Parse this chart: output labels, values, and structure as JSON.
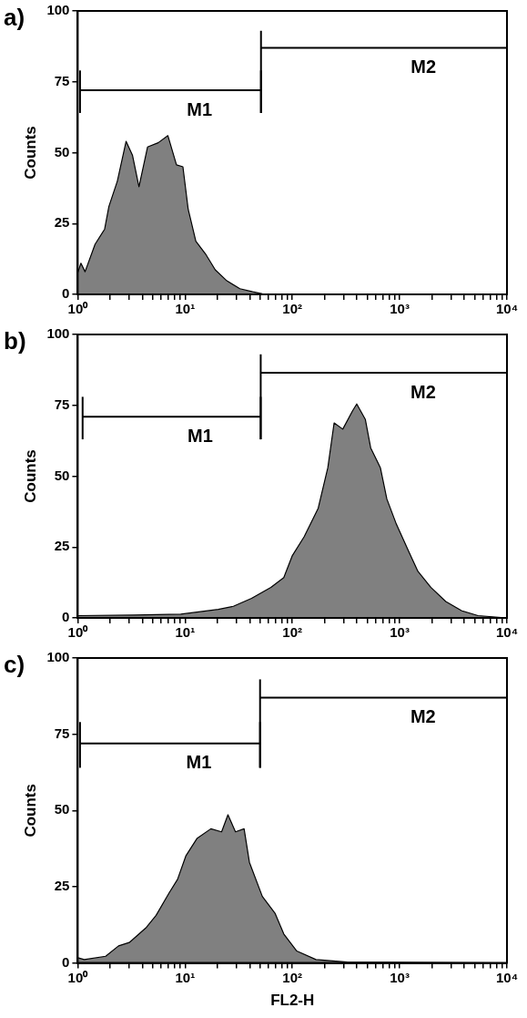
{
  "chart_data": [
    {
      "type": "area",
      "title": "a)",
      "ylabel": "Counts",
      "log": "x",
      "xlim": [
        1,
        10000
      ],
      "ylim": [
        0,
        100
      ],
      "marker": "none",
      "grid": false,
      "legend": false,
      "xticks": [
        {
          "value": 1,
          "label": "10⁰"
        },
        {
          "value": 2,
          "label": null
        },
        {
          "value": 3,
          "label": null
        },
        {
          "value": 4,
          "label": null
        },
        {
          "value": 5,
          "label": null
        },
        {
          "value": 6,
          "label": null
        },
        {
          "value": 7,
          "label": null
        },
        {
          "value": 8,
          "label": null
        },
        {
          "value": 9,
          "label": null
        },
        {
          "value": 10,
          "label": "10¹"
        },
        {
          "value": 20,
          "label": null
        },
        {
          "value": 30,
          "label": null
        },
        {
          "value": 40,
          "label": null
        },
        {
          "value": 50,
          "label": null
        },
        {
          "value": 60,
          "label": null
        },
        {
          "value": 70,
          "label": null
        },
        {
          "value": 80,
          "label": null
        },
        {
          "value": 90,
          "label": null
        },
        {
          "value": 100,
          "label": "10²"
        },
        {
          "value": 200,
          "label": null
        },
        {
          "value": 300,
          "label": null
        },
        {
          "value": 400,
          "label": null
        },
        {
          "value": 500,
          "label": null
        },
        {
          "value": 600,
          "label": null
        },
        {
          "value": 700,
          "label": null
        },
        {
          "value": 800,
          "label": null
        },
        {
          "value": 900,
          "label": null
        },
        {
          "value": 1000,
          "label": "10³"
        },
        {
          "value": 2000,
          "label": null
        },
        {
          "value": 3000,
          "label": null
        },
        {
          "value": 4000,
          "label": null
        },
        {
          "value": 5000,
          "label": null
        },
        {
          "value": 6000,
          "label": null
        },
        {
          "value": 7000,
          "label": null
        },
        {
          "value": 8000,
          "label": null
        },
        {
          "value": 9000,
          "label": null
        },
        {
          "value": 10000,
          "label": "10⁴"
        }
      ],
      "yticks": [
        0,
        25,
        50,
        75,
        100
      ],
      "series": [
        {
          "color": "#808080",
          "x": [
            1,
            1.07,
            1.17,
            1.45,
            1.78,
            1.95,
            2.34,
            2.82,
            3.24,
            3.72,
            4.47,
            5.62,
            6.92,
            8.32,
            9.55,
            10.7,
            12.6,
            15.5,
            19.1,
            24.5,
            32.4,
            42.7,
            52.5,
            77.6,
            10000
          ],
          "values": [
            7.6,
            11,
            8,
            17.7,
            23,
            31,
            40,
            54,
            49,
            38,
            52,
            53.5,
            56,
            45.7,
            45,
            30,
            18.8,
            14.3,
            8.7,
            4.8,
            2,
            0.9,
            0.2,
            0,
            0
          ]
        },
        {
          "type": "line",
          "name": "M1",
          "color": "#000000",
          "x": [
            1.05,
            51
          ],
          "values": [
            72,
            72
          ],
          "errors": [
            [
              64,
              79
            ],
            [
              64,
              79
            ]
          ]
        },
        {
          "type": "line",
          "name": "M2",
          "color": "#000000",
          "x": [
            51,
            10000
          ],
          "values": [
            87,
            87
          ],
          "errors": [
            [
              64,
              93
            ],
            [
              78,
              93
            ]
          ]
        }
      ]
    },
    {
      "type": "area",
      "title": "b)",
      "ylabel": "Counts",
      "log": "x",
      "xlim": [
        1,
        10000
      ],
      "ylim": [
        0,
        100
      ],
      "marker": "none",
      "grid": false,
      "legend": false,
      "xticks": [
        {
          "value": 1,
          "label": "10⁰"
        },
        {
          "value": 2,
          "label": null
        },
        {
          "value": 3,
          "label": null
        },
        {
          "value": 4,
          "label": null
        },
        {
          "value": 5,
          "label": null
        },
        {
          "value": 6,
          "label": null
        },
        {
          "value": 7,
          "label": null
        },
        {
          "value": 8,
          "label": null
        },
        {
          "value": 9,
          "label": null
        },
        {
          "value": 10,
          "label": "10¹"
        },
        {
          "value": 20,
          "label": null
        },
        {
          "value": 30,
          "label": null
        },
        {
          "value": 40,
          "label": null
        },
        {
          "value": 50,
          "label": null
        },
        {
          "value": 60,
          "label": null
        },
        {
          "value": 70,
          "label": null
        },
        {
          "value": 80,
          "label": null
        },
        {
          "value": 90,
          "label": null
        },
        {
          "value": 100,
          "label": "10²"
        },
        {
          "value": 200,
          "label": null
        },
        {
          "value": 300,
          "label": null
        },
        {
          "value": 400,
          "label": null
        },
        {
          "value": 500,
          "label": null
        },
        {
          "value": 600,
          "label": null
        },
        {
          "value": 700,
          "label": null
        },
        {
          "value": 800,
          "label": null
        },
        {
          "value": 900,
          "label": null
        },
        {
          "value": 1000,
          "label": "10³"
        },
        {
          "value": 2000,
          "label": null
        },
        {
          "value": 3000,
          "label": null
        },
        {
          "value": 4000,
          "label": null
        },
        {
          "value": 5000,
          "label": null
        },
        {
          "value": 6000,
          "label": null
        },
        {
          "value": 7000,
          "label": null
        },
        {
          "value": 8000,
          "label": null
        },
        {
          "value": 9000,
          "label": null
        },
        {
          "value": 10000,
          "label": "10⁴"
        }
      ],
      "yticks": [
        0,
        25,
        50,
        75,
        100
      ],
      "series": [
        {
          "color": "#808080",
          "x": [
            1,
            3.31,
            9.12,
            20.4,
            28.2,
            41.7,
            63.1,
            83.2,
            100,
            129,
            174,
            214,
            245,
            295,
            363,
            398,
            479,
            537,
            661,
            759,
            933,
            1230,
            1480,
            1950,
            2690,
            3800,
            5370,
            10000
          ],
          "values": [
            0.8,
            1,
            1.3,
            3,
            4.1,
            6.9,
            10.8,
            14.2,
            22,
            28.7,
            38.7,
            53,
            68.8,
            66.6,
            73,
            75.5,
            70,
            60,
            53,
            42,
            33,
            23,
            16.4,
            10.8,
            5.8,
            2.5,
            0.8,
            0
          ]
        },
        {
          "type": "line",
          "name": "M1",
          "color": "#000000",
          "x": [
            1.11,
            50.7
          ],
          "values": [
            71,
            71
          ],
          "errors": [
            [
              63,
              78
            ],
            [
              63,
              78
            ]
          ]
        },
        {
          "type": "line",
          "name": "M2",
          "color": "#000000",
          "x": [
            50.7,
            10000
          ],
          "values": [
            86.5,
            86.5
          ],
          "errors": [
            [
              63,
              93
            ],
            [
              78,
              93
            ]
          ]
        }
      ]
    },
    {
      "type": "area",
      "title": "c)",
      "xlabel": "FL2-H",
      "ylabel": "Counts",
      "log": "x",
      "xlim": [
        1,
        10000
      ],
      "ylim": [
        0,
        100
      ],
      "marker": "none",
      "grid": false,
      "legend": false,
      "xticks": [
        {
          "value": 1,
          "label": "10⁰"
        },
        {
          "value": 2,
          "label": null
        },
        {
          "value": 3,
          "label": null
        },
        {
          "value": 4,
          "label": null
        },
        {
          "value": 5,
          "label": null
        },
        {
          "value": 6,
          "label": null
        },
        {
          "value": 7,
          "label": null
        },
        {
          "value": 8,
          "label": null
        },
        {
          "value": 9,
          "label": null
        },
        {
          "value": 10,
          "label": "10¹"
        },
        {
          "value": 20,
          "label": null
        },
        {
          "value": 30,
          "label": null
        },
        {
          "value": 40,
          "label": null
        },
        {
          "value": 50,
          "label": null
        },
        {
          "value": 60,
          "label": null
        },
        {
          "value": 70,
          "label": null
        },
        {
          "value": 80,
          "label": null
        },
        {
          "value": 90,
          "label": null
        },
        {
          "value": 100,
          "label": "10²"
        },
        {
          "value": 200,
          "label": null
        },
        {
          "value": 300,
          "label": null
        },
        {
          "value": 400,
          "label": null
        },
        {
          "value": 500,
          "label": null
        },
        {
          "value": 600,
          "label": null
        },
        {
          "value": 700,
          "label": null
        },
        {
          "value": 800,
          "label": null
        },
        {
          "value": 900,
          "label": null
        },
        {
          "value": 1000,
          "label": "10³"
        },
        {
          "value": 2000,
          "label": null
        },
        {
          "value": 3000,
          "label": null
        },
        {
          "value": 4000,
          "label": null
        },
        {
          "value": 5000,
          "label": null
        },
        {
          "value": 6000,
          "label": null
        },
        {
          "value": 7000,
          "label": null
        },
        {
          "value": 8000,
          "label": null
        },
        {
          "value": 9000,
          "label": null
        },
        {
          "value": 10000,
          "label": "10⁴"
        }
      ],
      "yticks": [
        0,
        25,
        50,
        75,
        100
      ],
      "series": [
        {
          "color": "#808080",
          "x": [
            1,
            1.15,
            1.82,
            2.4,
            3.02,
            4.37,
            5.37,
            7.08,
            8.51,
            10.2,
            12.9,
            17.4,
            21.9,
            25.1,
            29.5,
            35.5,
            39.8,
            52.5,
            69.2,
            83.2,
            110,
            166,
            324,
            10000
          ],
          "values": [
            1.7,
            1.1,
            2.2,
            5.6,
            6.7,
            11.7,
            15.6,
            22.9,
            27.4,
            35.2,
            40.8,
            44,
            43,
            48.6,
            43,
            44,
            33,
            21.8,
            16.2,
            9.5,
            3.9,
            1.1,
            0.3,
            0
          ]
        },
        {
          "type": "line",
          "name": "M1",
          "color": "#000000",
          "x": [
            1.05,
            50
          ],
          "values": [
            72,
            72
          ],
          "errors": [
            [
              64,
              79
            ],
            [
              64,
              79
            ]
          ]
        },
        {
          "type": "line",
          "name": "M2",
          "color": "#000000",
          "x": [
            50,
            10000
          ],
          "values": [
            87,
            87
          ],
          "errors": [
            [
              64,
              93
            ],
            [
              79,
              93
            ]
          ]
        }
      ]
    }
  ]
}
